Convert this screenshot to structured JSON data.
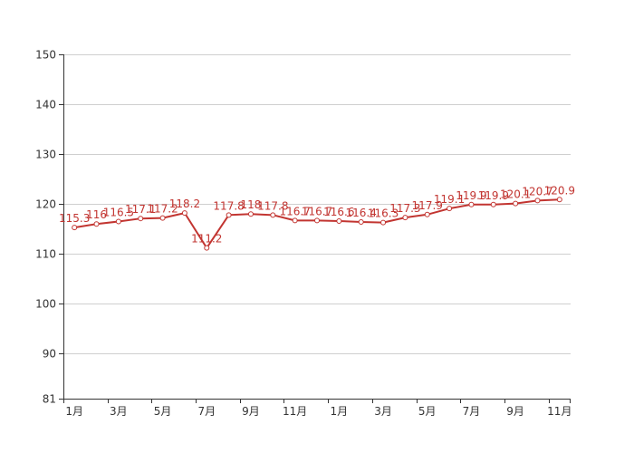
{
  "chart_data": {
    "type": "line",
    "title": "",
    "xlabel": "",
    "ylabel": "",
    "ylim": [
      81,
      150
    ],
    "yticks": [
      81,
      90,
      100,
      110,
      120,
      130,
      140,
      150
    ],
    "grid": true,
    "legend": "none",
    "color": "#c23531",
    "x_tick_labels": [
      "1月",
      "3月",
      "5月",
      "7月",
      "9月",
      "11月",
      "1月",
      "3月",
      "5月",
      "7月",
      "9月",
      "11月"
    ],
    "series": [
      {
        "values": [
          115.3,
          116,
          116.5,
          117.1,
          117.2,
          118.2,
          111.2,
          117.8,
          118,
          117.8,
          116.7,
          116.7,
          116.6,
          116.4,
          116.3,
          117.3,
          117.9,
          119.1,
          119.9,
          119.9,
          120.1,
          120.7,
          120.9
        ],
        "labels": [
          "115.3",
          "116",
          "116.5",
          "117.1",
          "117.2",
          "118.2",
          "111.2",
          "117.8",
          "118",
          "117.8",
          "116.7",
          "116.7",
          "116.6",
          "116.4",
          "116.3",
          "117.3",
          "117.9",
          "119.1",
          "119.9",
          "119.9",
          "120.1",
          "120.7",
          "120.9"
        ]
      }
    ]
  }
}
